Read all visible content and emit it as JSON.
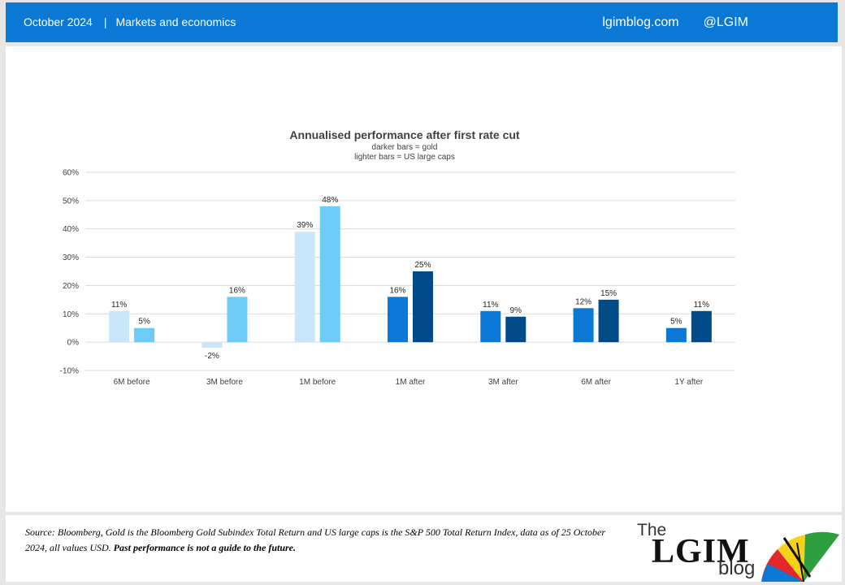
{
  "header": {
    "date": "October 2024",
    "separator": "|",
    "category": "Markets and economics",
    "site": "lgimblog.com",
    "handle": "@LGIM"
  },
  "chart_data": {
    "type": "bar",
    "title": "Annualised performance after first rate cut",
    "subtitle_lines": [
      "darker bars = gold",
      "lighter bars = US large caps"
    ],
    "categories": [
      "6M before",
      "3M before",
      "1M before",
      "1M after",
      "3M after",
      "6M after",
      "1Y after"
    ],
    "series": [
      {
        "values": [
          11,
          -2,
          39,
          16,
          11,
          12,
          5
        ]
      },
      {
        "values": [
          5,
          16,
          48,
          25,
          9,
          15,
          11
        ]
      }
    ],
    "bar_colors": [
      [
        "#c9e6fa",
        "#6ecbf5"
      ],
      [
        "#c9e6fa",
        "#6ecbf5"
      ],
      [
        "#c9e6fa",
        "#6ecbf5"
      ],
      [
        "#0a78d4",
        "#004a87"
      ],
      [
        "#0a78d4",
        "#004a87"
      ],
      [
        "#0a78d4",
        "#004a87"
      ],
      [
        "#0a78d4",
        "#004a87"
      ]
    ],
    "data_labels": [
      [
        "11%",
        "5%"
      ],
      [
        "-2%",
        "16%"
      ],
      [
        "39%",
        "48%"
      ],
      [
        "16%",
        "25%"
      ],
      [
        "11%",
        "9%"
      ],
      [
        "12%",
        "15%"
      ],
      [
        "5%",
        "11%"
      ]
    ],
    "ylim": [
      -10,
      60
    ],
    "yticks": [
      60,
      50,
      40,
      30,
      20,
      10,
      0,
      -10
    ],
    "ytick_labels": [
      "60%",
      "50%",
      "40%",
      "30%",
      "20%",
      "10%",
      "0%",
      "-10%"
    ],
    "grid": true,
    "legend": "none"
  },
  "footer": {
    "source": "Source: Bloomberg, Gold is the Bloomberg Gold Subindex Total Return and US large caps is the S&P 500 Total Return Index, data as of 25 October 2024, all values USD. ",
    "disclaimer": "Past performance is not a guide to the future.",
    "logo_the": "The",
    "logo_main": "LGIM",
    "logo_sub": "blog"
  }
}
